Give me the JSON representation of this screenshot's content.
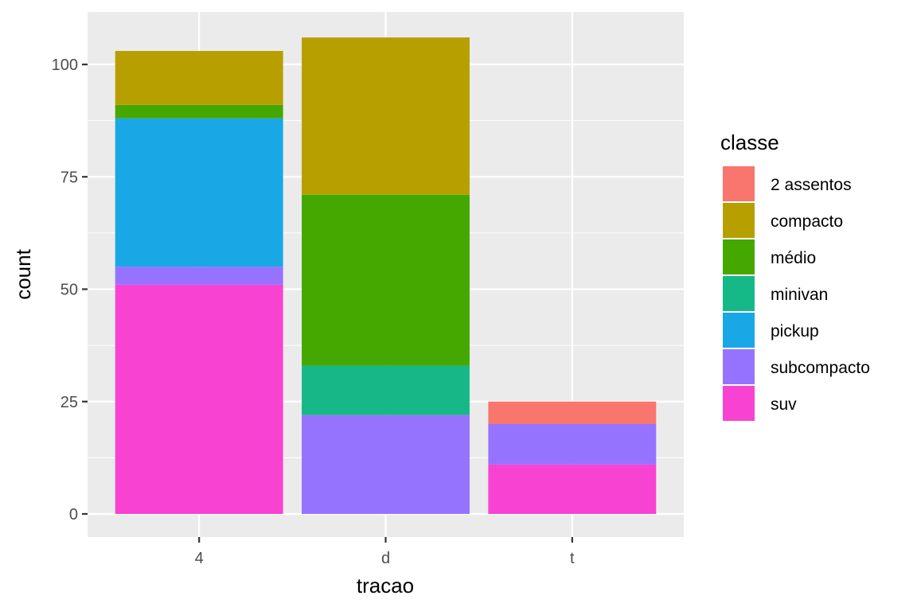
{
  "chart_data": {
    "type": "bar",
    "stacked": true,
    "xlabel": "tracao",
    "ylabel": "count",
    "categories": [
      "4",
      "d",
      "t"
    ],
    "ylim": [
      0,
      108
    ],
    "yticks": [
      0,
      25,
      50,
      75,
      100
    ],
    "grid": true,
    "legend": {
      "title": "classe",
      "position": "right"
    },
    "series": [
      {
        "name": "2 assentos",
        "color": "#F8766D",
        "values": [
          0,
          0,
          5
        ]
      },
      {
        "name": "compacto",
        "color": "#B79F00",
        "values": [
          12,
          35,
          0
        ]
      },
      {
        "name": "médio",
        "color": "#45A800",
        "values": [
          3,
          38,
          0
        ]
      },
      {
        "name": "minivan",
        "color": "#17B887",
        "values": [
          0,
          11,
          0
        ]
      },
      {
        "name": "pickup",
        "color": "#18A8E6",
        "values": [
          33,
          0,
          0
        ]
      },
      {
        "name": "subcompacto",
        "color": "#9673FF",
        "values": [
          4,
          22,
          9
        ]
      },
      {
        "name": "suv",
        "color": "#F843D2",
        "values": [
          51,
          0,
          11
        ]
      }
    ]
  }
}
